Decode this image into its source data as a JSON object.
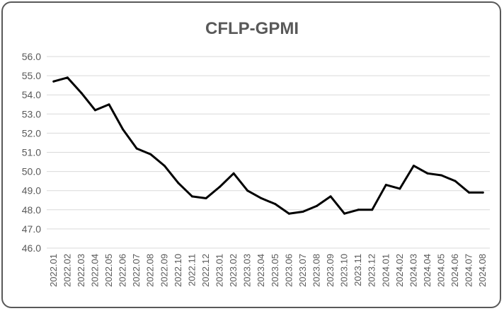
{
  "chart_data": {
    "type": "line",
    "title": "CFLP-GPMI",
    "xlabel": "",
    "ylabel": "",
    "ylim": [
      46.0,
      56.0
    ],
    "ytick_step": 1.0,
    "grid": true,
    "legend": "none",
    "line_color": "#000000",
    "categories": [
      "2022.01",
      "2022.02",
      "2022.03",
      "2022.04",
      "2022.05",
      "2022.06",
      "2022.07",
      "2022.08",
      "2022.09",
      "2022.10",
      "2022.11",
      "2022.12",
      "2023.01",
      "2023.02",
      "2023.03",
      "2023.04",
      "2023.05",
      "2023.06",
      "2023.07",
      "2023.08",
      "2023.09",
      "2023.10",
      "2023.11",
      "2023.12",
      "2024.01",
      "2024.02",
      "2024.03",
      "2024.04",
      "2024.05",
      "2024.06",
      "2024.07",
      "2024.08"
    ],
    "series": [
      {
        "values": [
          54.7,
          54.9,
          54.1,
          53.2,
          53.5,
          52.2,
          51.2,
          50.9,
          50.3,
          49.4,
          48.7,
          48.6,
          49.2,
          49.9,
          49.0,
          48.6,
          48.3,
          47.8,
          47.9,
          48.2,
          48.7,
          47.8,
          48.0,
          48.0,
          49.3,
          49.1,
          50.3,
          49.9,
          49.8,
          49.5,
          48.9,
          48.9
        ]
      }
    ]
  }
}
